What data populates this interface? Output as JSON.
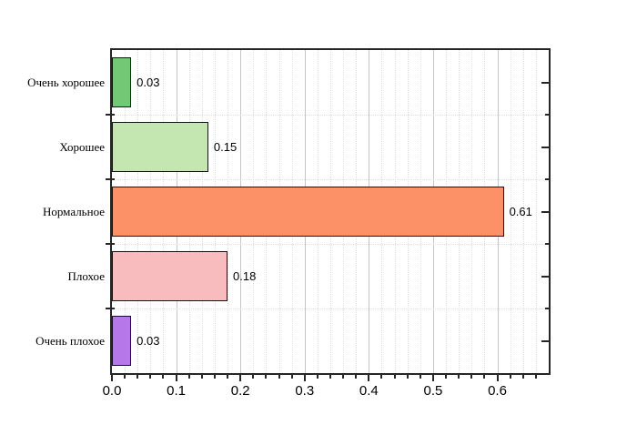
{
  "chart_data": {
    "type": "bar",
    "orientation": "horizontal",
    "categories": [
      "Очень хорошее",
      "Хорошее",
      "Нормальное",
      "Плохое",
      "Очень плохое"
    ],
    "values": [
      0.03,
      0.15,
      0.61,
      0.18,
      0.03
    ],
    "value_labels": [
      "0.03",
      "0.15",
      "0.61",
      "0.18",
      "0.03"
    ],
    "bar_colors": [
      "#72c875",
      "#c4e6b0",
      "#fc9066",
      "#f8bcbe",
      "#b678e8"
    ],
    "xlim": [
      0,
      0.68
    ],
    "x_major_ticks": [
      0.0,
      0.1,
      0.2,
      0.3,
      0.4,
      0.5,
      0.6
    ],
    "x_tick_labels": [
      "0.0",
      "0.1",
      "0.2",
      "0.3",
      "0.4",
      "0.5",
      "0.6"
    ],
    "x_minor_step": 0.02,
    "legend": "none",
    "grid": {
      "vertical_major": "solid",
      "vertical_minor": "dotted",
      "horizontal_band_boundaries": "dotted"
    },
    "colors": {
      "axis_frame": "#262626",
      "bar_outline": "#141414",
      "grid_major": "#c6c6c6",
      "grid_minor": "#dcdcdc",
      "text": "#000000",
      "background": "#ffffff"
    }
  }
}
